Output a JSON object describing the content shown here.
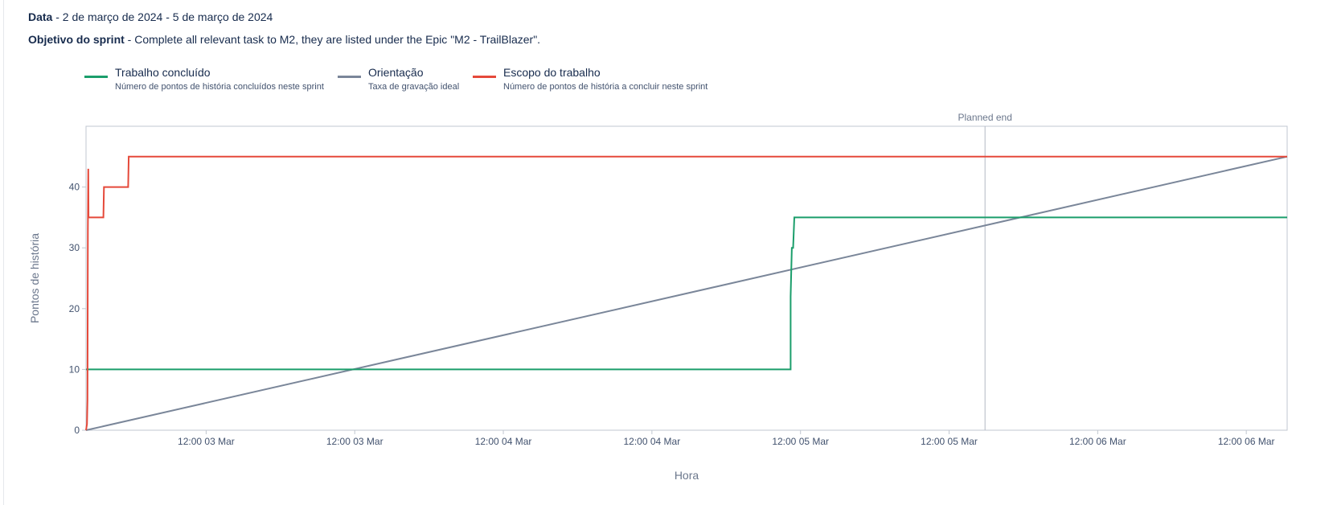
{
  "header": {
    "date_label": "Data",
    "date_value": " - 2 de março de 2024 - 5 de março de 2024",
    "goal_label": "Objetivo do sprint",
    "goal_value": " - Complete all relevant task to M2, they are listed under the Epic \"M2 - TrailBlazer\"."
  },
  "legend": [
    {
      "title": "Trabalho concluído",
      "desc": "Número de pontos de história concluídos neste sprint",
      "color": "#1b9e6b"
    },
    {
      "title": "Orientação",
      "desc": "Taxa de gravação ideal",
      "color": "#7a8699"
    },
    {
      "title": "Escopo do trabalho",
      "desc": "Número de pontos de história a concluir neste sprint",
      "color": "#e5493a"
    }
  ],
  "chart_data": {
    "type": "line",
    "xlabel": "Hora",
    "ylabel": "Pontos de história",
    "x_unit": "hours since sprint start (2 Mar 2024)",
    "xlim": [
      0,
      97
    ],
    "ylim": [
      0,
      50
    ],
    "yticks": [
      0,
      10,
      20,
      30,
      40
    ],
    "xticks": [
      {
        "x": 9.7,
        "label": "12:00 03 Mar"
      },
      {
        "x": 21.7,
        "label": "12:00 03 Mar"
      },
      {
        "x": 33.7,
        "label": "12:00 04 Mar"
      },
      {
        "x": 45.7,
        "label": "12:00 04 Mar"
      },
      {
        "x": 57.7,
        "label": "12:00 05 Mar"
      },
      {
        "x": 69.7,
        "label": "12:00 05 Mar"
      },
      {
        "x": 81.7,
        "label": "12:00 06 Mar"
      },
      {
        "x": 93.7,
        "label": "12:00 06 Mar"
      }
    ],
    "planned_end": {
      "x": 72.6,
      "label": "Planned end"
    },
    "series": [
      {
        "name": "Trabalho concluído",
        "color": "#1b9e6b",
        "points": [
          [
            0,
            10
          ],
          [
            56.9,
            10
          ],
          [
            56.9,
            22
          ],
          [
            57.0,
            30
          ],
          [
            57.1,
            30
          ],
          [
            57.2,
            35
          ],
          [
            97,
            35
          ]
        ]
      },
      {
        "name": "Orientação",
        "color": "#7a8699",
        "points": [
          [
            0,
            0
          ],
          [
            97,
            45
          ]
        ]
      },
      {
        "name": "Escopo do trabalho",
        "color": "#e5493a",
        "points": [
          [
            0,
            0
          ],
          [
            0.08,
            1
          ],
          [
            0.12,
            5
          ],
          [
            0.15,
            33
          ],
          [
            0.18,
            43
          ],
          [
            0.2,
            35
          ],
          [
            1.4,
            35
          ],
          [
            1.45,
            40
          ],
          [
            3.4,
            40
          ],
          [
            3.45,
            45
          ],
          [
            97,
            45
          ]
        ]
      }
    ]
  }
}
